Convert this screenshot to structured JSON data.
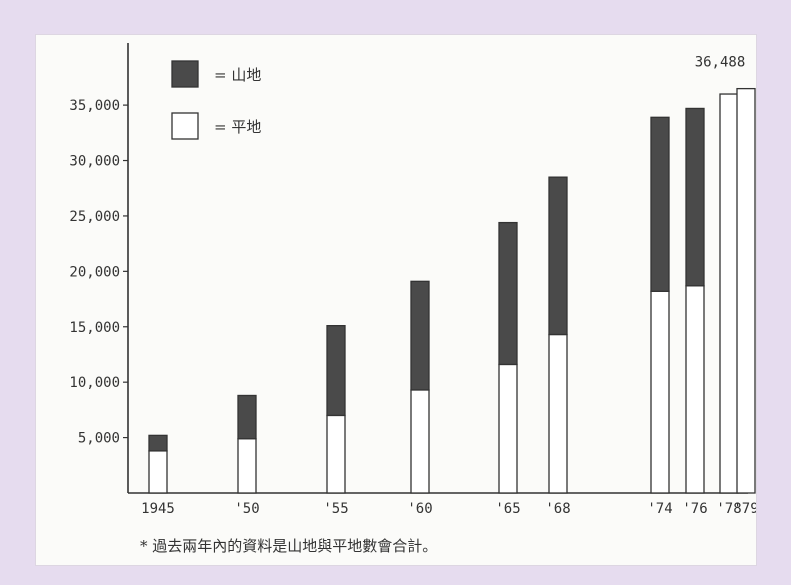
{
  "chart_data": {
    "type": "bar",
    "stacked": true,
    "categories": [
      "1945",
      "'50",
      "'55",
      "'60",
      "'65",
      "'68",
      "'74",
      "'76",
      "'78",
      "'79"
    ],
    "series": [
      {
        "name": "平地",
        "color": "#ffffff",
        "values": [
          3800,
          4900,
          7000,
          9300,
          11600,
          14300,
          18200,
          18700,
          36000,
          36488
        ]
      },
      {
        "name": "山地",
        "color": "#4a4a4a",
        "values": [
          1400,
          3900,
          8100,
          9800,
          12800,
          14200,
          15700,
          16000,
          0,
          0
        ]
      }
    ],
    "legend_order": [
      "山地",
      "平地"
    ],
    "legend_labels": [
      "=  山地",
      "=  平地"
    ],
    "yticks": [
      5000,
      10000,
      15000,
      20000,
      25000,
      30000,
      35000
    ],
    "ytick_labels": [
      "5,000",
      "10,000",
      "15,000",
      "20,000",
      "25,000",
      "30,000",
      "35,000"
    ],
    "ylim": [
      0,
      40000
    ],
    "annotation": {
      "text": "36,488"
    },
    "footnote": "* 過去兩年內的資料是山地與平地數會合計。",
    "legend_position": "top-left"
  }
}
